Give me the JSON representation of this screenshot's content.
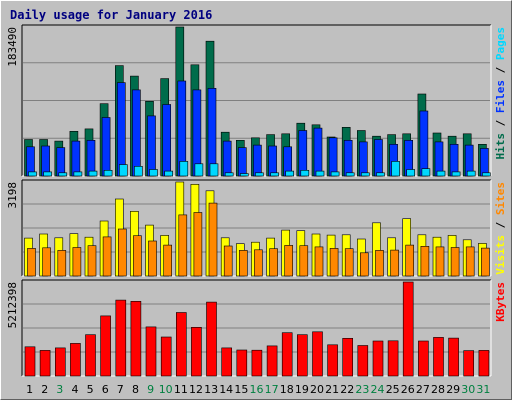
{
  "chart_data": {
    "title": "Daily usage for January 2016",
    "type": "bar",
    "categories": [
      "1",
      "2",
      "3",
      "4",
      "5",
      "6",
      "7",
      "8",
      "9",
      "10",
      "11",
      "12",
      "13",
      "14",
      "15",
      "16",
      "17",
      "18",
      "19",
      "20",
      "21",
      "22",
      "23",
      "24",
      "25",
      "26",
      "27",
      "28",
      "29",
      "30",
      "31"
    ],
    "weekend_days": [
      "3",
      "9",
      "10",
      "16",
      "17",
      "23",
      "24",
      "30",
      "31"
    ],
    "colors": {
      "hits": "#006c4b",
      "files": "#0033ff",
      "pages": "#00d8ff",
      "visits": "#ffff00",
      "sites": "#ff8800",
      "kbytes": "#ff0000",
      "weekday_label": "#000000",
      "weekend_label": "#008040"
    },
    "panels": [
      {
        "id": "top",
        "max_label": "183490",
        "ylim": [
          0,
          183490
        ],
        "legend": [
          {
            "text": "Hits",
            "color": "#006c4b"
          },
          {
            "text": "Files",
            "color": "#0033ff"
          },
          {
            "text": "Pages",
            "color": "#00d8ff"
          }
        ],
        "series": [
          {
            "name": "Hits",
            "color": "#006c4b",
            "values": [
              45000,
              45000,
              43000,
              55000,
              58000,
              89000,
              136000,
              123000,
              92000,
              120000,
              183490,
              137000,
              166000,
              54000,
              44000,
              47000,
              51000,
              52000,
              65000,
              63000,
              48000,
              60000,
              56000,
              49000,
              51000,
              52000,
              101000,
              53000,
              49000,
              52000,
              39000
            ]
          },
          {
            "name": "Files",
            "color": "#0033ff",
            "values": [
              36000,
              37000,
              35000,
              43000,
              44000,
              72000,
              115000,
              106000,
              74000,
              88000,
              117000,
              106000,
              108000,
              43000,
              35000,
              38000,
              37000,
              36000,
              56000,
              59000,
              47000,
              44000,
              42000,
              45000,
              39000,
              44000,
              80000,
              42000,
              39000,
              38000,
              34000
            ]
          },
          {
            "name": "Pages",
            "color": "#00d8ff",
            "values": [
              5000,
              5000,
              4000,
              5000,
              6000,
              7000,
              14000,
              12000,
              8000,
              6000,
              18000,
              15000,
              15000,
              4000,
              3000,
              4000,
              4000,
              6000,
              7000,
              6000,
              5000,
              4000,
              4000,
              4000,
              18000,
              8000,
              9000,
              6000,
              5000,
              6000,
              4000
            ]
          }
        ]
      },
      {
        "id": "middle",
        "max_label": "3198",
        "ylim": [
          0,
          3198
        ],
        "legend": [
          {
            "text": "Visits",
            "color": "#ffff00"
          },
          {
            "text": "Sites",
            "color": "#ff8800"
          }
        ],
        "series": [
          {
            "name": "Visits",
            "color": "#ffff00",
            "values": [
              1290,
              1430,
              1300,
              1440,
              1320,
              1870,
              2620,
              2200,
              1730,
              1380,
              3198,
              3120,
              2900,
              1300,
              1100,
              1150,
              1290,
              1560,
              1540,
              1430,
              1390,
              1400,
              1260,
              1810,
              1300,
              1950,
              1400,
              1320,
              1380,
              1230,
              1110
            ]
          },
          {
            "name": "Sites",
            "color": "#ff8800",
            "values": [
              940,
              960,
              870,
              970,
              1030,
              1330,
              1600,
              1370,
              1190,
              1050,
              2080,
              2160,
              2480,
              1020,
              870,
              890,
              930,
              1040,
              1030,
              990,
              940,
              930,
              790,
              870,
              880,
              1050,
              1010,
              990,
              970,
              990,
              950
            ]
          }
        ]
      },
      {
        "id": "bottom",
        "max_label": "5212398",
        "ylim": [
          0,
          5212398
        ],
        "legend": [
          {
            "text": "KBytes",
            "color": "#ff0000"
          }
        ],
        "series": [
          {
            "name": "KBytes",
            "color": "#ff0000",
            "values": [
              1620000,
              1420000,
              1560000,
              1810000,
              2290000,
              3330000,
              4210000,
              4140000,
              2720000,
              2160000,
              3520000,
              2700000,
              4100000,
              1560000,
              1440000,
              1430000,
              1670000,
              2400000,
              2290000,
              2450000,
              1730000,
              2090000,
              1690000,
              1940000,
              1950000,
              5212398,
              1940000,
              2140000,
              2100000,
              1410000,
              1420000
            ]
          }
        ]
      }
    ]
  }
}
